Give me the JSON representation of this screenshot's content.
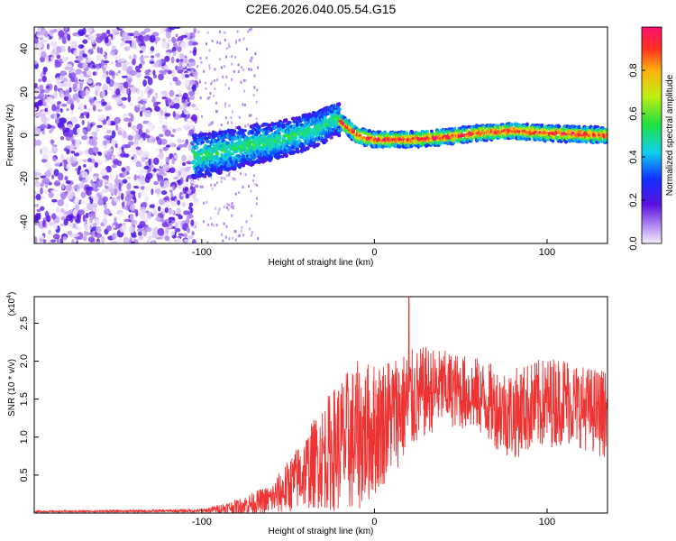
{
  "title": "C2E6.2026.040.05.54.G15",
  "chart_data": [
    {
      "type": "heatmap",
      "xlabel": "Height of straight line (km)",
      "ylabel": "Frequency (Hz)",
      "xlim": [
        -197,
        135
      ],
      "ylim": [
        -50,
        50
      ],
      "x_ticks": [
        -100,
        0,
        100
      ],
      "y_ticks": [
        -40,
        -20,
        0,
        20,
        40
      ],
      "colorbar": {
        "label": "Normalized spectral amplitude",
        "range": [
          0,
          1
        ],
        "ticks": [
          0.0,
          0.2,
          0.4,
          0.6,
          0.8
        ]
      },
      "ridge": {
        "description_points_x_km": [
          -105,
          -90,
          -75,
          -60,
          -45,
          -30,
          -22,
          -10,
          0,
          20,
          40,
          60,
          80,
          100,
          135
        ],
        "center_frequency_hz": [
          -10,
          -8,
          -5,
          -3,
          0,
          4,
          8,
          0,
          -2,
          -2,
          -1,
          1,
          2,
          1,
          0
        ]
      },
      "noise_region_x_km": [
        -197,
        -103
      ]
    },
    {
      "type": "line",
      "xlabel": "Height of straight line (km)",
      "ylabel": "SNR (10 * v/v)",
      "ylabel_scale": "(x10",
      "ylabel_scale_exp": "4",
      "ylabel_scale_close": ")",
      "xlim": [
        -197,
        135
      ],
      "ylim": [
        0,
        2.85
      ],
      "x_ticks": [
        -100,
        0,
        100
      ],
      "y_ticks": [
        0.5,
        1.0,
        1.5,
        2.0,
        2.5
      ],
      "y_tick_labels": [
        "0.5",
        "1.0",
        "1.5",
        "2.0",
        "2.5"
      ],
      "series": [
        {
          "name": "SNR",
          "color": "#ee3333",
          "envelope_x_km": [
            -197,
            -100,
            -80,
            -60,
            -50,
            -40,
            -30,
            -20,
            -10,
            0,
            10,
            20,
            30,
            40,
            50,
            60,
            70,
            80,
            90,
            100,
            110,
            120,
            135
          ],
          "envelope_mean": [
            0.02,
            0.03,
            0.08,
            0.18,
            0.35,
            0.55,
            0.75,
            0.9,
            1.0,
            1.1,
            1.3,
            1.45,
            1.6,
            1.65,
            1.6,
            1.55,
            1.4,
            1.3,
            1.4,
            1.45,
            1.5,
            1.4,
            1.3
          ],
          "envelope_spread": [
            0.01,
            0.02,
            0.1,
            0.2,
            0.35,
            0.5,
            0.7,
            0.9,
            1.0,
            0.9,
            0.8,
            0.7,
            0.6,
            0.5,
            0.5,
            0.5,
            0.55,
            0.6,
            0.6,
            0.6,
            0.6,
            0.55,
            0.6
          ],
          "peak": {
            "x": 20,
            "y": 2.85
          }
        }
      ]
    }
  ]
}
